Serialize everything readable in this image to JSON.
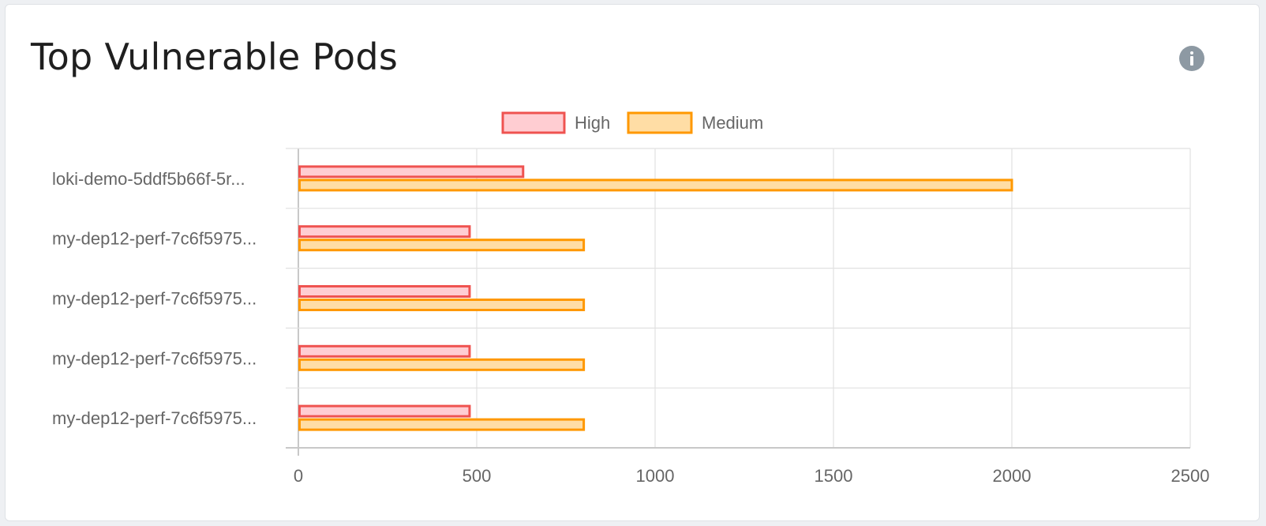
{
  "card": {
    "title": "Top Vulnerable Pods",
    "info_icon": "info-icon"
  },
  "colors": {
    "high_border": "#ef5350",
    "high_fill": "#ffcdd2",
    "medium_border": "#ff9800",
    "medium_fill": "#ffdda5",
    "grid": "#e1e1e1",
    "axis": "#c8c8c8",
    "text": "#666666"
  },
  "chart_data": {
    "type": "bar",
    "orientation": "horizontal",
    "title": "Top Vulnerable Pods",
    "categories": [
      "loki-demo-5ddf5b66f-5r...",
      "my-dep12-perf-7c6f5975...",
      "my-dep12-perf-7c6f5975...",
      "my-dep12-perf-7c6f5975...",
      "my-dep12-perf-7c6f5975..."
    ],
    "series": [
      {
        "name": "High",
        "values": [
          630,
          480,
          480,
          480,
          480
        ]
      },
      {
        "name": "Medium",
        "values": [
          2000,
          800,
          800,
          800,
          800
        ]
      }
    ],
    "xlim": [
      0,
      2500
    ],
    "xticks": [
      0,
      500,
      1000,
      1500,
      2000,
      2500
    ],
    "legend": "top-center",
    "grid": true
  }
}
